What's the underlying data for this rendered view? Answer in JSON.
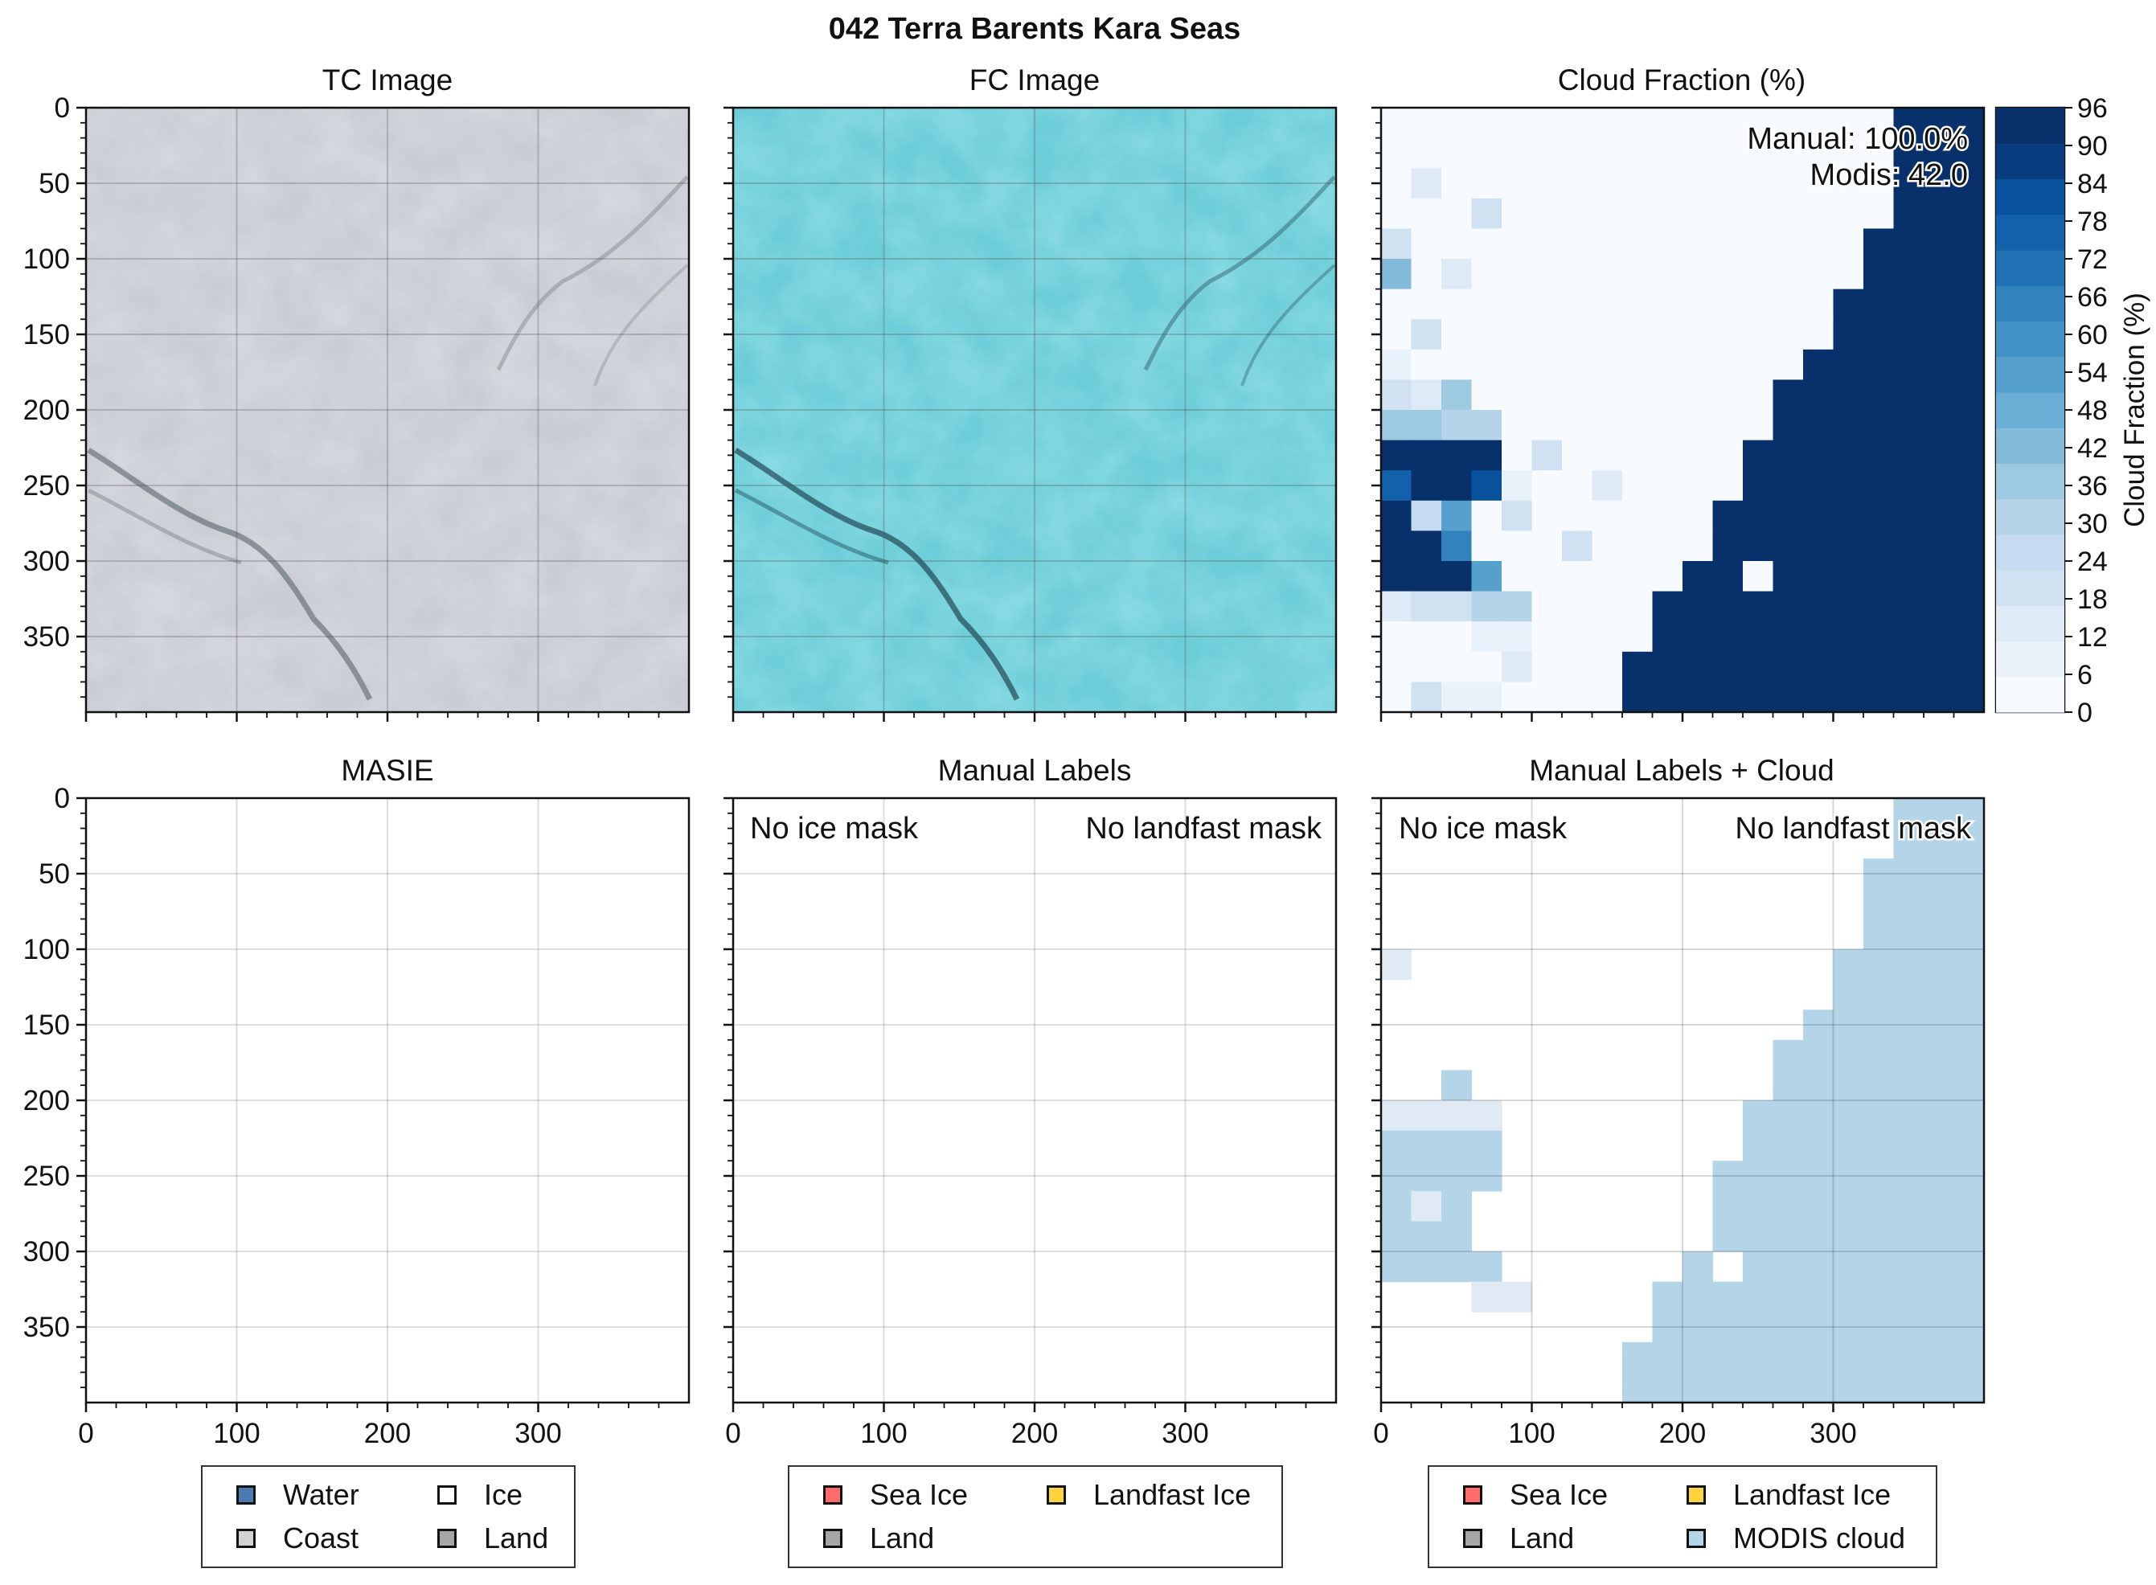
{
  "chart_data": {
    "type": "heatmap",
    "title": "042 Terra Barents Kara Seas",
    "grid_size": 20,
    "cell_units": 20,
    "xticks": [
      "0",
      "100",
      "200",
      "300"
    ],
    "yticks": [
      "0",
      "50",
      "100",
      "150",
      "200",
      "250",
      "300",
      "350"
    ],
    "panels": {
      "tc": {
        "title": "TC Image"
      },
      "fc": {
        "title": "FC Image"
      },
      "cloud": {
        "title": "Cloud Fraction (%)",
        "annotation_manual": "Manual: 100.0%",
        "annotation_modis": "Modis: 42.0",
        "colorbar_label": "Cloud Fraction (%)",
        "colorbar_ticks": [
          "0",
          "6",
          "12",
          "18",
          "24",
          "30",
          "36",
          "42",
          "48",
          "54",
          "60",
          "66",
          "72",
          "78",
          "84",
          "90",
          "96"
        ],
        "cmap": [
          "#f7fbff",
          "#e9f2fb",
          "#deebf7",
          "#d0e2f2",
          "#c6dbef",
          "#b5d4e9",
          "#9ecae1",
          "#84bbdb",
          "#6baed6",
          "#56a0ce",
          "#4292c6",
          "#3182bd",
          "#2171b5",
          "#1361aa",
          "#08519c",
          "#083d7f",
          "#08306b"
        ],
        "cells": [
          [
            0,
            0,
            0,
            0,
            0,
            0,
            0,
            0,
            0,
            0,
            0,
            0,
            0,
            0,
            0,
            0,
            0,
            96,
            96,
            96
          ],
          [
            0,
            0,
            0,
            0,
            0,
            0,
            0,
            0,
            0,
            0,
            0,
            0,
            0,
            0,
            0,
            0,
            0,
            96,
            96,
            96
          ],
          [
            0,
            15,
            0,
            0,
            0,
            0,
            0,
            0,
            0,
            0,
            0,
            0,
            0,
            0,
            0,
            0,
            0,
            96,
            96,
            96
          ],
          [
            0,
            0,
            0,
            20,
            0,
            0,
            0,
            0,
            0,
            0,
            0,
            0,
            0,
            0,
            0,
            0,
            0,
            96,
            96,
            96
          ],
          [
            20,
            0,
            0,
            0,
            0,
            0,
            0,
            0,
            0,
            0,
            0,
            0,
            0,
            0,
            0,
            0,
            96,
            96,
            96,
            96
          ],
          [
            45,
            0,
            12,
            0,
            0,
            0,
            0,
            0,
            0,
            0,
            0,
            0,
            0,
            0,
            0,
            0,
            96,
            96,
            96,
            96
          ],
          [
            0,
            0,
            0,
            0,
            0,
            0,
            0,
            0,
            0,
            0,
            0,
            0,
            0,
            0,
            0,
            96,
            96,
            96,
            96,
            96
          ],
          [
            0,
            20,
            0,
            0,
            0,
            0,
            0,
            0,
            0,
            0,
            0,
            0,
            0,
            0,
            0,
            96,
            96,
            96,
            96,
            96
          ],
          [
            8,
            0,
            0,
            0,
            0,
            0,
            0,
            0,
            0,
            0,
            0,
            0,
            0,
            0,
            96,
            96,
            96,
            96,
            96,
            96
          ],
          [
            18,
            12,
            40,
            0,
            0,
            0,
            0,
            0,
            0,
            0,
            0,
            0,
            0,
            96,
            96,
            96,
            96,
            96,
            96,
            96
          ],
          [
            40,
            40,
            30,
            30,
            0,
            0,
            0,
            0,
            0,
            0,
            0,
            0,
            0,
            96,
            96,
            96,
            96,
            96,
            96,
            96
          ],
          [
            96,
            96,
            96,
            96,
            0,
            18,
            0,
            0,
            0,
            0,
            0,
            0,
            96,
            96,
            96,
            96,
            96,
            96,
            96,
            96
          ],
          [
            80,
            96,
            96,
            85,
            10,
            0,
            0,
            15,
            0,
            0,
            0,
            0,
            96,
            96,
            96,
            96,
            96,
            96,
            96,
            96
          ],
          [
            96,
            28,
            55,
            0,
            18,
            0,
            0,
            0,
            0,
            0,
            0,
            96,
            96,
            96,
            96,
            96,
            96,
            96,
            96,
            96
          ],
          [
            96,
            96,
            70,
            0,
            0,
            0,
            18,
            0,
            0,
            0,
            0,
            96,
            96,
            96,
            96,
            96,
            96,
            96,
            96,
            96
          ],
          [
            96,
            96,
            96,
            55,
            0,
            0,
            0,
            0,
            0,
            0,
            96,
            96,
            0,
            96,
            96,
            96,
            96,
            96,
            96,
            96
          ],
          [
            12,
            20,
            20,
            30,
            30,
            0,
            0,
            0,
            0,
            96,
            96,
            96,
            96,
            96,
            96,
            96,
            96,
            96,
            96,
            96
          ],
          [
            4,
            0,
            0,
            10,
            10,
            0,
            0,
            0,
            0,
            96,
            96,
            96,
            96,
            96,
            96,
            96,
            96,
            96,
            96,
            96
          ],
          [
            0,
            0,
            0,
            0,
            12,
            0,
            0,
            0,
            96,
            96,
            96,
            96,
            96,
            96,
            96,
            96,
            96,
            96,
            96,
            96
          ],
          [
            0,
            22,
            8,
            8,
            0,
            0,
            0,
            0,
            96,
            96,
            96,
            96,
            96,
            96,
            96,
            96,
            96,
            96,
            96,
            96
          ]
        ]
      },
      "masie": {
        "title": "MASIE"
      },
      "manual": {
        "title": "Manual Labels",
        "text_left": "No ice mask",
        "text_right": "No landfast mask"
      },
      "manual_cloud": {
        "title": "Manual Labels + Cloud",
        "text_left": "No ice mask",
        "text_right": "No landfast mask",
        "colors": {
          "1": "#b4d5e8",
          "2": "#e0eaf5"
        },
        "cells": [
          [
            0,
            0,
            0,
            0,
            0,
            0,
            0,
            0,
            0,
            0,
            0,
            0,
            0,
            0,
            0,
            0,
            0,
            1,
            1,
            1
          ],
          [
            0,
            0,
            0,
            0,
            0,
            0,
            0,
            0,
            0,
            0,
            0,
            0,
            0,
            0,
            0,
            0,
            0,
            1,
            1,
            1
          ],
          [
            0,
            0,
            0,
            0,
            0,
            0,
            0,
            0,
            0,
            0,
            0,
            0,
            0,
            0,
            0,
            0,
            1,
            1,
            1,
            1
          ],
          [
            0,
            0,
            0,
            0,
            0,
            0,
            0,
            0,
            0,
            0,
            0,
            0,
            0,
            0,
            0,
            0,
            1,
            1,
            1,
            1
          ],
          [
            0,
            0,
            0,
            0,
            0,
            0,
            0,
            0,
            0,
            0,
            0,
            0,
            0,
            0,
            0,
            0,
            1,
            1,
            1,
            1
          ],
          [
            2,
            0,
            0,
            0,
            0,
            0,
            0,
            0,
            0,
            0,
            0,
            0,
            0,
            0,
            0,
            1,
            1,
            1,
            1,
            1
          ],
          [
            0,
            0,
            0,
            0,
            0,
            0,
            0,
            0,
            0,
            0,
            0,
            0,
            0,
            0,
            0,
            1,
            1,
            1,
            1,
            1
          ],
          [
            0,
            0,
            0,
            0,
            0,
            0,
            0,
            0,
            0,
            0,
            0,
            0,
            0,
            0,
            1,
            1,
            1,
            1,
            1,
            1
          ],
          [
            0,
            0,
            0,
            0,
            0,
            0,
            0,
            0,
            0,
            0,
            0,
            0,
            0,
            1,
            1,
            1,
            1,
            1,
            1,
            1
          ],
          [
            0,
            0,
            1,
            0,
            0,
            0,
            0,
            0,
            0,
            0,
            0,
            0,
            0,
            1,
            1,
            1,
            1,
            1,
            1,
            1
          ],
          [
            2,
            2,
            2,
            2,
            0,
            0,
            0,
            0,
            0,
            0,
            0,
            0,
            1,
            1,
            1,
            1,
            1,
            1,
            1,
            1
          ],
          [
            1,
            1,
            1,
            1,
            0,
            0,
            0,
            0,
            0,
            0,
            0,
            0,
            1,
            1,
            1,
            1,
            1,
            1,
            1,
            1
          ],
          [
            1,
            1,
            1,
            1,
            0,
            0,
            0,
            0,
            0,
            0,
            0,
            1,
            1,
            1,
            1,
            1,
            1,
            1,
            1,
            1
          ],
          [
            1,
            2,
            1,
            0,
            0,
            0,
            0,
            0,
            0,
            0,
            0,
            1,
            1,
            1,
            1,
            1,
            1,
            1,
            1,
            1
          ],
          [
            1,
            1,
            1,
            0,
            0,
            0,
            0,
            0,
            0,
            0,
            0,
            1,
            1,
            1,
            1,
            1,
            1,
            1,
            1,
            1
          ],
          [
            1,
            1,
            1,
            1,
            0,
            0,
            0,
            0,
            0,
            0,
            1,
            0,
            1,
            1,
            1,
            1,
            1,
            1,
            1,
            1
          ],
          [
            0,
            0,
            0,
            2,
            2,
            0,
            0,
            0,
            0,
            1,
            1,
            1,
            1,
            1,
            1,
            1,
            1,
            1,
            1,
            1
          ],
          [
            0,
            0,
            0,
            0,
            0,
            0,
            0,
            0,
            0,
            1,
            1,
            1,
            1,
            1,
            1,
            1,
            1,
            1,
            1,
            1
          ],
          [
            0,
            0,
            0,
            0,
            0,
            0,
            0,
            0,
            1,
            1,
            1,
            1,
            1,
            1,
            1,
            1,
            1,
            1,
            1,
            1
          ],
          [
            0,
            0,
            0,
            0,
            0,
            0,
            0,
            0,
            1,
            1,
            1,
            1,
            1,
            1,
            1,
            1,
            1,
            1,
            1,
            1
          ]
        ]
      }
    },
    "legends": {
      "masie": [
        {
          "label": "Water",
          "color": "#4a7ab0"
        },
        {
          "label": "Ice",
          "color": "#ffffff"
        },
        {
          "label": "Coast",
          "color": "#d2d2d2"
        },
        {
          "label": "Land",
          "color": "#a6a6a6"
        }
      ],
      "manual": [
        {
          "label": "Sea Ice",
          "color": "#ff6b6b"
        },
        {
          "label": "Landfast Ice",
          "color": "#ffd33d"
        },
        {
          "label": "Land",
          "color": "#a6a6a6"
        }
      ],
      "manual_cloud": [
        {
          "label": "Sea Ice",
          "color": "#ff6b6b"
        },
        {
          "label": "Landfast Ice",
          "color": "#ffd33d"
        },
        {
          "label": "Land",
          "color": "#a6a6a6"
        },
        {
          "label": "MODIS cloud",
          "color": "#b4d5e8"
        }
      ]
    }
  }
}
